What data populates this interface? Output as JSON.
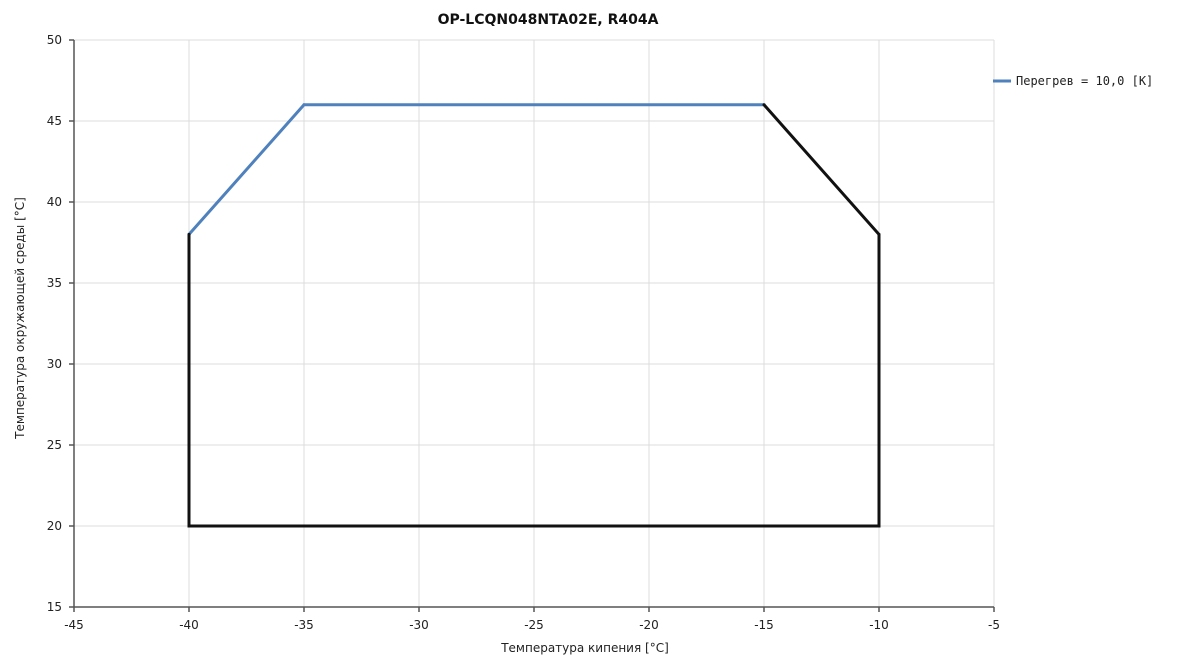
{
  "chart_data": {
    "type": "line",
    "title": "OP-LCQN048NTA02E,  R404A",
    "xlabel": "Температура кипения [°C]",
    "ylabel": "Температура окружающей среды [°C]",
    "xlim": [
      -45,
      -5
    ],
    "ylim": [
      15,
      50
    ],
    "xticks": [
      -45,
      -40,
      -35,
      -30,
      -25,
      -20,
      -15,
      -10,
      -5
    ],
    "yticks": [
      15,
      20,
      25,
      30,
      35,
      40,
      45,
      50
    ],
    "grid": true,
    "legend_position": "right",
    "series": [
      {
        "name": "Перегрев = 10,0 [K]",
        "color": "#4f81bd",
        "x": [
          -40,
          -35,
          -15
        ],
        "y": [
          38,
          46,
          46
        ]
      },
      {
        "color": "#111111",
        "x": [
          -15,
          -10,
          -10,
          -40,
          -40
        ],
        "y": [
          46,
          38,
          20,
          20,
          38
        ]
      }
    ]
  }
}
